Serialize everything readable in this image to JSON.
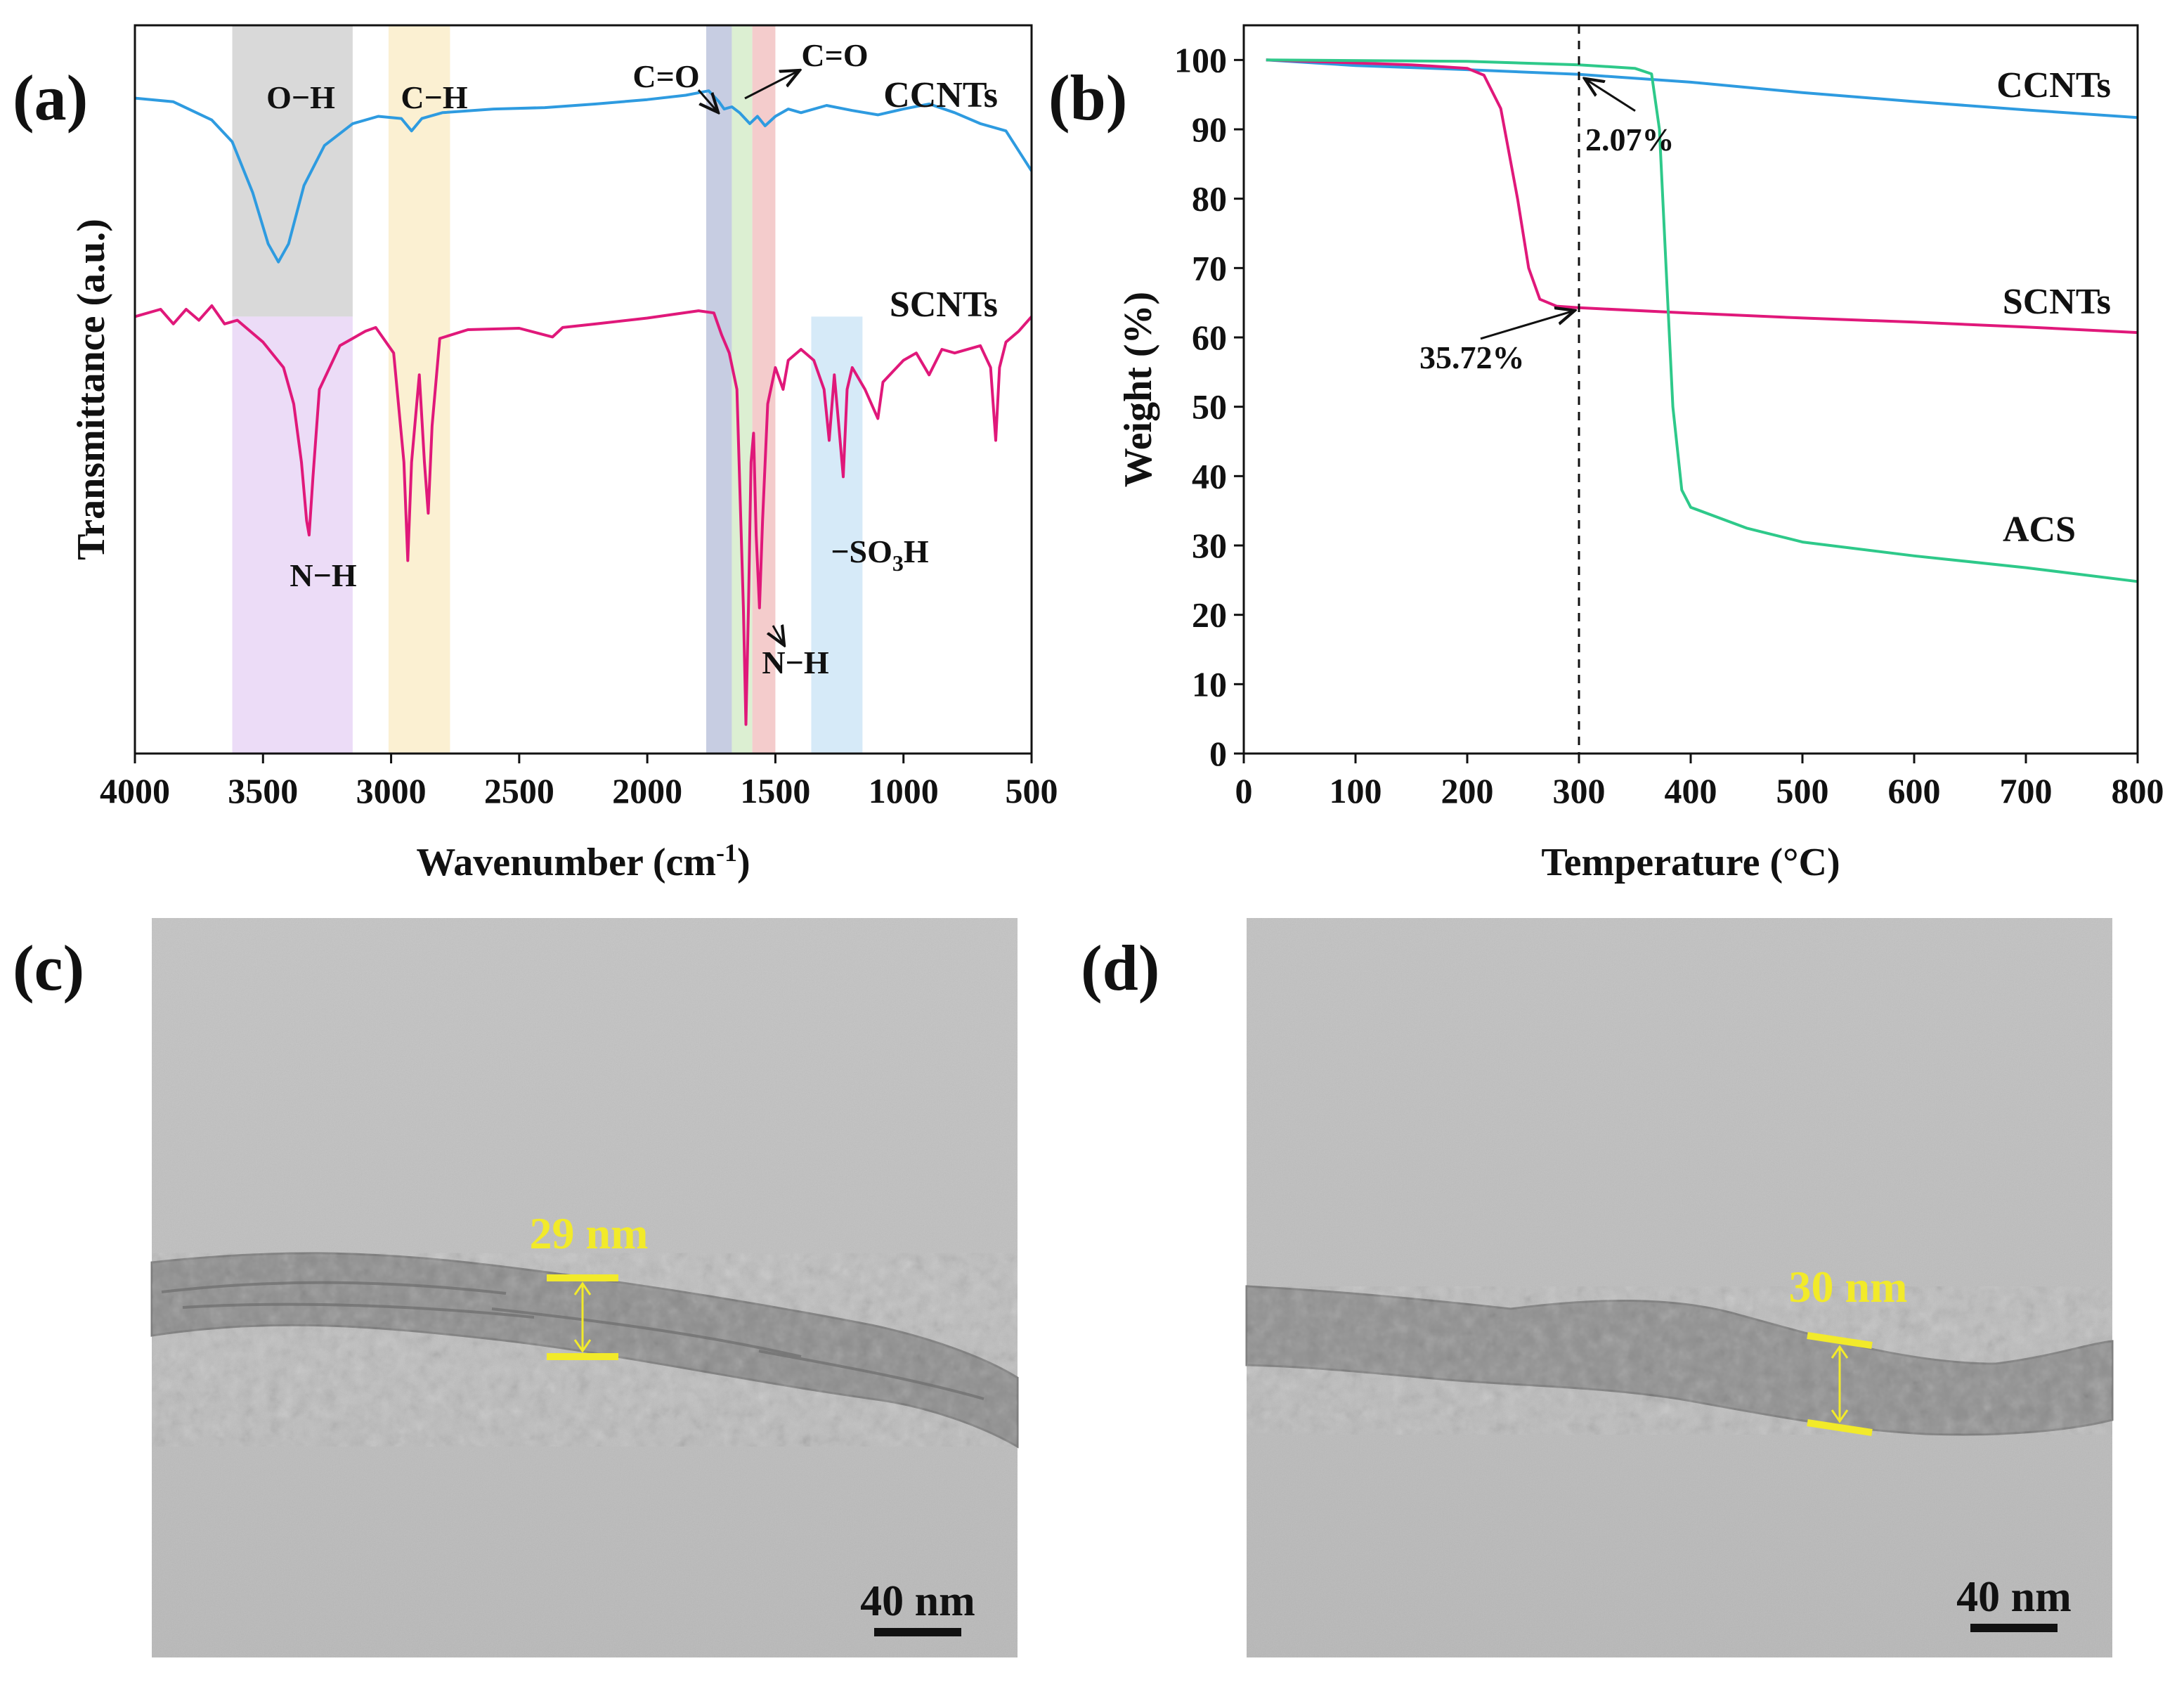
{
  "panels": {
    "a": "(a)",
    "b": "(b)",
    "c": "(c)",
    "d": "(d)"
  },
  "colors": {
    "ccnts": "#2e9be0",
    "scnts": "#e0187a",
    "acs": "#2ec98a",
    "yellow": "#f2ea2a"
  },
  "chart_data": [
    {
      "id": "a",
      "type": "line",
      "title": "",
      "xlabel": "Wavenumber (cm",
      "xlabel_sup": "-1",
      "xlabel_end": ")",
      "ylabel": "Transmittance (a.u.)",
      "xlim": [
        4000,
        500
      ],
      "xticks": [
        4000,
        3500,
        3000,
        2500,
        2000,
        1500,
        1000,
        500
      ],
      "ylim": [
        0,
        100
      ],
      "bands": [
        {
          "name": "band-oh",
          "x0": 3620,
          "x1": 3150,
          "y0": 60,
          "y1": 100,
          "color": "#d9d9d9"
        },
        {
          "name": "band-nh",
          "x0": 3620,
          "x1": 3150,
          "y0": 0,
          "y1": 60,
          "color": "#ecdcf7"
        },
        {
          "name": "band-ch",
          "x0": 3010,
          "x1": 2770,
          "y0": 0,
          "y1": 100,
          "color": "#fbf0d2"
        },
        {
          "name": "band-co1",
          "x0": 1770,
          "x1": 1670,
          "y0": 0,
          "y1": 100,
          "color": "#c7cde2"
        },
        {
          "name": "band-mid",
          "x0": 1670,
          "x1": 1590,
          "y0": 0,
          "y1": 100,
          "color": "#dcefd2"
        },
        {
          "name": "band-co2",
          "x0": 1590,
          "x1": 1500,
          "y0": 0,
          "y1": 100,
          "color": "#f4cccc"
        },
        {
          "name": "band-so3h",
          "x0": 1360,
          "x1": 1160,
          "y0": 0,
          "y1": 60,
          "color": "#d6eaf8"
        }
      ],
      "series": [
        {
          "name": "CCNTs",
          "points": [
            [
              4000,
              90
            ],
            [
              3850,
              89.5
            ],
            [
              3700,
              87
            ],
            [
              3620,
              84
            ],
            [
              3540,
              77
            ],
            [
              3480,
              70
            ],
            [
              3440,
              67.5
            ],
            [
              3400,
              70
            ],
            [
              3340,
              78
            ],
            [
              3260,
              83.5
            ],
            [
              3150,
              86.5
            ],
            [
              3050,
              87.5
            ],
            [
              2960,
              87.2
            ],
            [
              2920,
              85.5
            ],
            [
              2880,
              87.2
            ],
            [
              2800,
              88
            ],
            [
              2600,
              88.5
            ],
            [
              2400,
              88.7
            ],
            [
              2200,
              89.2
            ],
            [
              2000,
              89.8
            ],
            [
              1850,
              90.4
            ],
            [
              1760,
              91
            ],
            [
              1720,
              89.5
            ],
            [
              1700,
              88.5
            ],
            [
              1670,
              88.8
            ],
            [
              1640,
              88
            ],
            [
              1600,
              86.5
            ],
            [
              1570,
              87.5
            ],
            [
              1540,
              86.2
            ],
            [
              1500,
              87.5
            ],
            [
              1450,
              88.5
            ],
            [
              1400,
              88
            ],
            [
              1300,
              89
            ],
            [
              1200,
              88.3
            ],
            [
              1100,
              87.7
            ],
            [
              1000,
              88.5
            ],
            [
              900,
              89.2
            ],
            [
              800,
              88
            ],
            [
              700,
              86.5
            ],
            [
              600,
              85.5
            ],
            [
              500,
              80
            ]
          ]
        },
        {
          "name": "SCNTs",
          "points": [
            [
              4000,
              60
            ],
            [
              3900,
              61
            ],
            [
              3850,
              59
            ],
            [
              3800,
              61
            ],
            [
              3750,
              59.5
            ],
            [
              3700,
              61.5
            ],
            [
              3650,
              59
            ],
            [
              3600,
              59.5
            ],
            [
              3500,
              56.5
            ],
            [
              3420,
              53
            ],
            [
              3380,
              48
            ],
            [
              3350,
              40
            ],
            [
              3330,
              32
            ],
            [
              3320,
              30
            ],
            [
              3305,
              38
            ],
            [
              3280,
              50
            ],
            [
              3200,
              56
            ],
            [
              3100,
              58
            ],
            [
              3060,
              58.5
            ],
            [
              2990,
              55
            ],
            [
              2950,
              40
            ],
            [
              2935,
              26.5
            ],
            [
              2920,
              40
            ],
            [
              2890,
              52
            ],
            [
              2870,
              40
            ],
            [
              2855,
              33
            ],
            [
              2840,
              45
            ],
            [
              2810,
              57
            ],
            [
              2700,
              58.2
            ],
            [
              2500,
              58.4
            ],
            [
              2370,
              57.2
            ],
            [
              2330,
              58.5
            ],
            [
              2200,
              59
            ],
            [
              2000,
              59.8
            ],
            [
              1800,
              60.8
            ],
            [
              1740,
              60.5
            ],
            [
              1710,
              57.5
            ],
            [
              1680,
              55
            ],
            [
              1650,
              50
            ],
            [
              1625,
              20
            ],
            [
              1615,
              4
            ],
            [
              1605,
              20
            ],
            [
              1595,
              40
            ],
            [
              1585,
              44
            ],
            [
              1575,
              30
            ],
            [
              1562,
              20
            ],
            [
              1550,
              32
            ],
            [
              1530,
              48
            ],
            [
              1500,
              53
            ],
            [
              1470,
              50
            ],
            [
              1450,
              54
            ],
            [
              1400,
              55.5
            ],
            [
              1350,
              54
            ],
            [
              1310,
              50
            ],
            [
              1290,
              43
            ],
            [
              1270,
              52
            ],
            [
              1250,
              44
            ],
            [
              1235,
              38
            ],
            [
              1220,
              50
            ],
            [
              1200,
              53
            ],
            [
              1150,
              50
            ],
            [
              1100,
              46
            ],
            [
              1080,
              51
            ],
            [
              1000,
              54
            ],
            [
              950,
              55
            ],
            [
              900,
              52
            ],
            [
              850,
              55.5
            ],
            [
              800,
              55
            ],
            [
              700,
              56
            ],
            [
              660,
              53
            ],
            [
              640,
              43
            ],
            [
              625,
              53
            ],
            [
              600,
              56.5
            ],
            [
              550,
              58
            ],
            [
              500,
              60
            ]
          ]
        }
      ],
      "labels": {
        "ccnts": "CCNTs",
        "scnts": "SCNTs",
        "oh": "O−H",
        "ch": "C−H",
        "co_left": "C=O",
        "co_right": "C=O",
        "nh_left": "N−H",
        "nh_right": "N−H",
        "so3h_pre": "−SO",
        "so3h_sub": "3",
        "so3h_post": "H"
      }
    },
    {
      "id": "b",
      "type": "line",
      "title": "",
      "xlabel": "Temperature (°C)",
      "ylabel": "Weight (%)",
      "xlim": [
        0,
        800
      ],
      "ylim": [
        0,
        105
      ],
      "xticks": [
        0,
        100,
        200,
        300,
        400,
        500,
        600,
        700,
        800
      ],
      "yticks": [
        0,
        10,
        20,
        30,
        40,
        50,
        60,
        70,
        80,
        90,
        100
      ],
      "reference_line_x": 300,
      "series": [
        {
          "name": "CCNTs",
          "points": [
            [
              20,
              100
            ],
            [
              100,
              99.2
            ],
            [
              200,
              98.6
            ],
            [
              300,
              97.93
            ],
            [
              400,
              96.8
            ],
            [
              500,
              95.3
            ],
            [
              600,
              94
            ],
            [
              700,
              92.8
            ],
            [
              800,
              91.7
            ]
          ]
        },
        {
          "name": "SCNTs",
          "points": [
            [
              20,
              100
            ],
            [
              150,
              99.3
            ],
            [
              200,
              98.8
            ],
            [
              215,
              97.8
            ],
            [
              230,
              93
            ],
            [
              245,
              80
            ],
            [
              255,
              70
            ],
            [
              265,
              65.5
            ],
            [
              280,
              64.5
            ],
            [
              300,
              64.28
            ],
            [
              400,
              63.5
            ],
            [
              500,
              62.8
            ],
            [
              600,
              62.2
            ],
            [
              700,
              61.5
            ],
            [
              800,
              60.7
            ]
          ]
        },
        {
          "name": "ACS",
          "points": [
            [
              20,
              100
            ],
            [
              200,
              99.8
            ],
            [
              300,
              99.3
            ],
            [
              350,
              98.8
            ],
            [
              365,
              98
            ],
            [
              372,
              90
            ],
            [
              378,
              70
            ],
            [
              384,
              50
            ],
            [
              392,
              38
            ],
            [
              400,
              35.5
            ],
            [
              450,
              32.5
            ],
            [
              500,
              30.5
            ],
            [
              600,
              28.5
            ],
            [
              700,
              26.8
            ],
            [
              800,
              24.8
            ]
          ]
        }
      ],
      "labels": {
        "ccnts": "CCNTs",
        "scnts": "SCNTs",
        "acs": "ACS"
      },
      "annotations": [
        {
          "text": "2.07%",
          "x": 300,
          "y": 97.93
        },
        {
          "text": "35.72%",
          "x": 300,
          "y": 64.28
        }
      ]
    }
  ],
  "tem": {
    "c": {
      "measure": "29 nm",
      "scale": "40 nm"
    },
    "d": {
      "measure": "30 nm",
      "scale": "40 nm"
    }
  }
}
